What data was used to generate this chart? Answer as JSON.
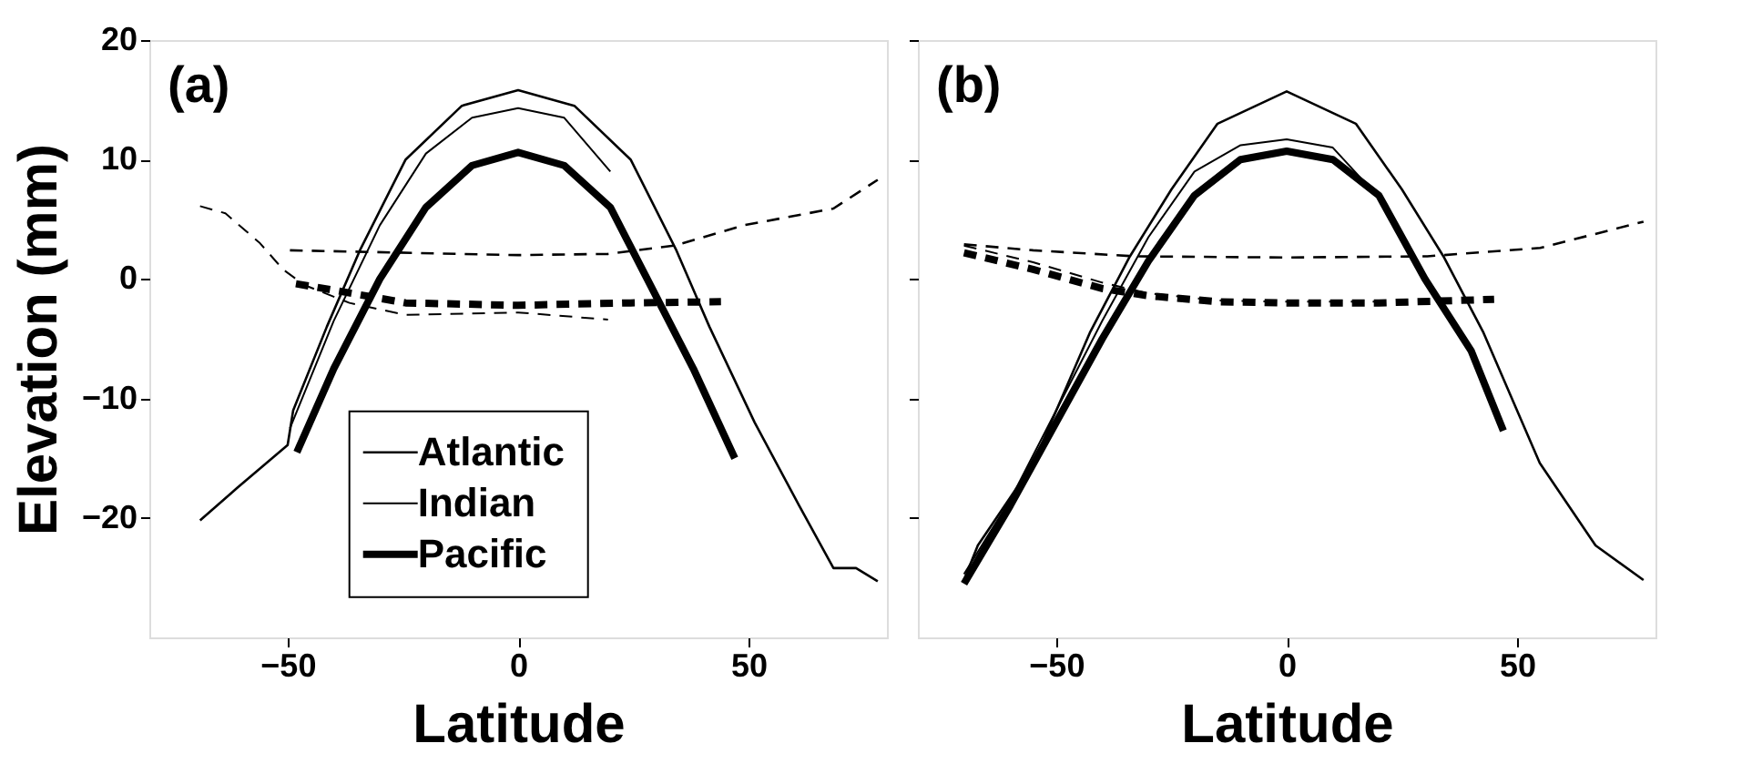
{
  "chart_data": [
    {
      "type": "line",
      "title": "(a)",
      "xlabel": "Latitude",
      "ylabel": "Elevation (mm)",
      "xlim": [
        -80,
        80
      ],
      "ylim": [
        -30,
        20
      ],
      "xticks": [
        -50,
        0,
        50
      ],
      "yticks": [
        -20,
        -10,
        0,
        10,
        20
      ],
      "legend": "bottom",
      "series": [
        {
          "name": "Atlantic",
          "color": "#000000",
          "line_style": "solid",
          "x": [
            -69,
            -61,
            -50,
            -48.8,
            -41.5,
            -34.2,
            -24.4,
            -12.2,
            0,
            12.2,
            24.4,
            34.2,
            41.5,
            51.3,
            61,
            68.4,
            73.3,
            78
          ],
          "values": [
            -20.2,
            -17.5,
            -13.9,
            -11,
            -4,
            2.5,
            10,
            14.5,
            15.8,
            14.5,
            10,
            2.5,
            -4,
            -12,
            -19,
            -24.2,
            -24.2,
            -25.3
          ]
        },
        {
          "name": "Indian",
          "color": "#000000",
          "line_style": "solid",
          "x": [
            -49.5,
            -40,
            -30,
            -20,
            -10,
            0,
            10,
            20
          ],
          "values": [
            -12.5,
            -3.5,
            4.5,
            10.5,
            13.5,
            14.3,
            13.5,
            9
          ]
        },
        {
          "name": "Pacific",
          "color": "#000000",
          "line_style": "solid",
          "x": [
            -48,
            -40,
            -30,
            -20,
            -10,
            0,
            10,
            20,
            28,
            38,
            47
          ],
          "values": [
            -14.5,
            -7.5,
            0,
            6,
            9.5,
            10.6,
            9.5,
            6,
            0,
            -7.5,
            -15
          ]
        },
        {
          "color": "#000000",
          "line_style": "dashed",
          "x": [
            -49.5,
            0,
            19.5,
            34,
            49,
            68.4,
            78
          ],
          "values": [
            2.4,
            2,
            2.1,
            2.8,
            4.5,
            5.9,
            8.3
          ]
        },
        {
          "color": "#000000",
          "line_style": "dashed",
          "x": [
            -69,
            -63.5,
            -56,
            -51,
            -46.4,
            -36.6,
            -24.4,
            0,
            19.5
          ],
          "values": [
            6.1,
            5.5,
            3,
            0.8,
            -0.5,
            -2,
            -3,
            -2.8,
            -3.4
          ]
        },
        {
          "color": "#000000",
          "line_style": "dashed",
          "x": [
            -48.2,
            -39,
            -24.4,
            0,
            24.4,
            44
          ],
          "values": [
            -0.4,
            -1,
            -2,
            -2.2,
            -2,
            -1.9
          ]
        }
      ]
    },
    {
      "type": "line",
      "title": "(b)",
      "xlabel": "Latitude",
      "xlim": [
        -80,
        80
      ],
      "ylim": [
        -30,
        20
      ],
      "xticks": [
        -50,
        0,
        50
      ],
      "yticks": [
        -20,
        -10,
        0,
        10,
        20
      ],
      "tick_labels": "x",
      "series": [
        {
          "color": "#000000",
          "line_style": "solid",
          "x": [
            -70,
            -67,
            -54.9,
            -42.7,
            -34,
            -25,
            -15,
            0,
            15,
            25,
            34,
            42.7,
            54.9,
            67,
            77.4
          ],
          "values": [
            -25.2,
            -22.3,
            -15.4,
            -4.5,
            1.9,
            7.5,
            13,
            15.7,
            13,
            7.5,
            1.9,
            -4.5,
            -15.4,
            -22.3,
            -25.2
          ]
        },
        {
          "color": "#000000",
          "line_style": "solid",
          "x": [
            -70,
            -60,
            -50,
            -40,
            -30,
            -20,
            -10,
            0,
            10,
            20
          ],
          "values": [
            -24.7,
            -18.5,
            -11,
            -3.5,
            3.5,
            9,
            11.2,
            11.7,
            11,
            6.8
          ]
        },
        {
          "color": "#000000",
          "line_style": "solid",
          "x": [
            -70,
            -60,
            -50,
            -40,
            -30,
            -20,
            -10,
            0,
            10,
            20,
            30,
            40,
            47
          ],
          "values": [
            -25.5,
            -19,
            -12,
            -5,
            1.5,
            7,
            10,
            10.7,
            10,
            7,
            0,
            -6,
            -12.7
          ]
        },
        {
          "color": "#000000",
          "line_style": "dashed",
          "x": [
            -70,
            -55,
            -33,
            0,
            30.5,
            55,
            77.4
          ],
          "values": [
            2.9,
            2.4,
            1.9,
            1.8,
            1.9,
            2.6,
            4.8
          ]
        },
        {
          "color": "#000000",
          "line_style": "dashed",
          "x": [
            -70,
            -55,
            -40,
            -30,
            -15,
            0,
            20
          ],
          "values": [
            2.8,
            1.4,
            -0.3,
            -1.2,
            -1.8,
            -1.9,
            -1.9
          ]
        },
        {
          "color": "#000000",
          "line_style": "dashed",
          "x": [
            -70,
            -55,
            -40,
            -30,
            -15,
            0,
            20,
            45
          ],
          "values": [
            2.2,
            0.8,
            -0.8,
            -1.4,
            -1.9,
            -2,
            -2,
            -1.7
          ]
        }
      ]
    }
  ]
}
